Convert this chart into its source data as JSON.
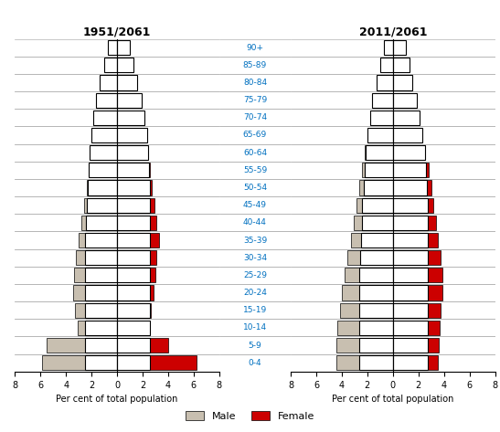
{
  "age_groups": [
    "0-4",
    "5-9",
    "10-14",
    "15-19",
    "20-24",
    "25-29",
    "30-34",
    "35-39",
    "40-44",
    "45-49",
    "50-54",
    "55-59",
    "60-64",
    "65-69",
    "70-74",
    "75-79",
    "80-84",
    "85-89",
    "90+"
  ],
  "chart1_title": "1951/2061",
  "chart2_title": "2011/2061",
  "xlabel": "Per cent of total population",
  "legend_male": "Male",
  "legend_female": "Female",
  "male_bg_color": "#c8bfb0",
  "female_bg_color": "#cc0000",
  "outline_color": "#000000",
  "axis_label_color": "#0070c0",
  "grid_color": "#b0b0b0",
  "bg_color": "#ffffff",
  "c1_male_1951": [
    5.9,
    5.5,
    3.1,
    3.3,
    3.45,
    3.4,
    3.2,
    3.0,
    2.8,
    2.6,
    2.4,
    2.15,
    1.95,
    1.7,
    1.4,
    1.0,
    0.75,
    0.45,
    0.25
  ],
  "c1_female_1951": [
    6.2,
    4.0,
    2.5,
    2.65,
    2.85,
    3.0,
    3.1,
    3.25,
    3.1,
    2.9,
    2.7,
    2.55,
    2.35,
    2.1,
    1.75,
    1.35,
    1.0,
    0.7,
    0.4
  ],
  "c1_male_2061": [
    2.55,
    2.55,
    2.55,
    2.55,
    2.55,
    2.55,
    2.55,
    2.5,
    2.45,
    2.4,
    2.3,
    2.2,
    2.15,
    2.05,
    1.85,
    1.65,
    1.35,
    1.0,
    0.7
  ],
  "c1_female_2061": [
    2.6,
    2.6,
    2.6,
    2.6,
    2.6,
    2.6,
    2.6,
    2.6,
    2.6,
    2.6,
    2.55,
    2.5,
    2.45,
    2.35,
    2.15,
    1.9,
    1.6,
    1.3,
    1.0
  ],
  "c2_male_2011": [
    4.45,
    4.4,
    4.35,
    4.15,
    4.0,
    3.8,
    3.55,
    3.3,
    3.1,
    2.85,
    2.65,
    2.45,
    2.2,
    1.9,
    1.55,
    1.2,
    0.85,
    0.5,
    0.2
  ],
  "c2_female_2011": [
    3.5,
    3.6,
    3.65,
    3.75,
    3.85,
    3.85,
    3.75,
    3.55,
    3.4,
    3.2,
    3.0,
    2.8,
    2.55,
    2.25,
    1.85,
    1.45,
    1.05,
    0.65,
    0.3
  ],
  "c2_male_2061": [
    2.65,
    2.65,
    2.65,
    2.65,
    2.65,
    2.6,
    2.55,
    2.5,
    2.45,
    2.4,
    2.3,
    2.2,
    2.1,
    2.0,
    1.8,
    1.6,
    1.3,
    1.0,
    0.7
  ],
  "c2_female_2061": [
    2.75,
    2.75,
    2.75,
    2.75,
    2.75,
    2.75,
    2.75,
    2.75,
    2.75,
    2.7,
    2.65,
    2.6,
    2.5,
    2.3,
    2.1,
    1.85,
    1.55,
    1.3,
    1.0
  ],
  "xlim": 8,
  "bar_height": 0.85,
  "label_fontsize": 6.5,
  "title_fontsize": 9,
  "tick_fontsize": 7,
  "xlabel_fontsize": 7
}
